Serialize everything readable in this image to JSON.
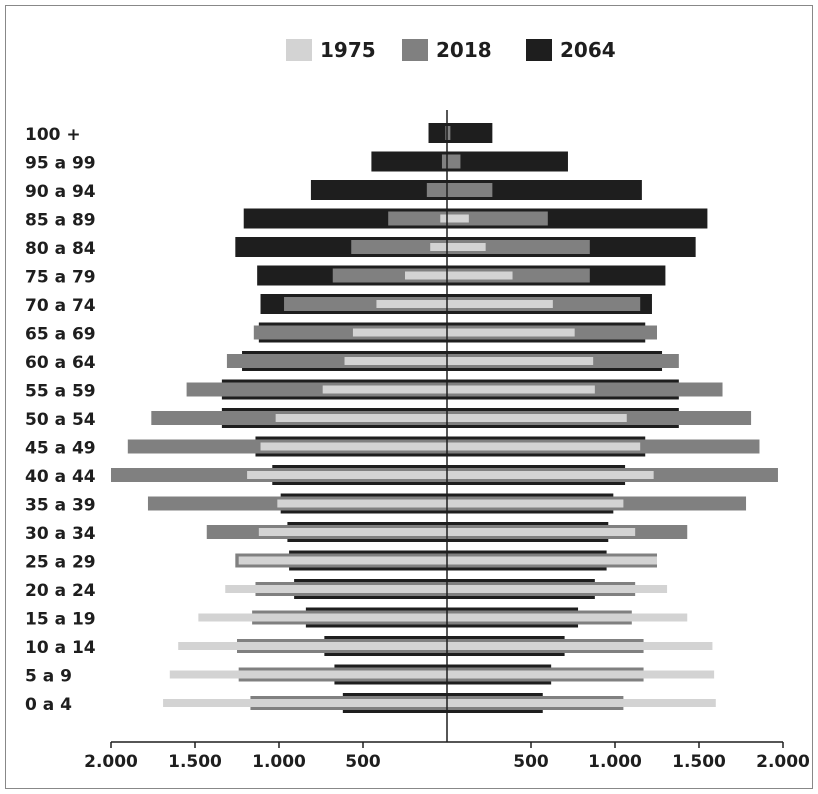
{
  "chart_data": {
    "type": "bar",
    "subtype": "population-pyramid",
    "title": "",
    "xlabel": "",
    "ylabel": "",
    "legend_position": "top-center",
    "xlim": [
      -2000,
      2000
    ],
    "x_ticks": [
      -2000,
      -1500,
      -1000,
      -500,
      500,
      1000,
      1500,
      2000
    ],
    "x_tick_labels": [
      "2.000",
      "1.500",
      "1.000",
      "500",
      "500",
      "1.000",
      "1.500",
      "2.000"
    ],
    "categories": [
      "100 +",
      "95 a 99",
      "90 a 94",
      "85 a 89",
      "80 a 84",
      "75 a 79",
      "70 a 74",
      "65 a 69",
      "60 a 64",
      "55 a 59",
      "50 a 54",
      "45 a 49",
      "40 a 44",
      "35 a 39",
      "30 a 34",
      "25 a 29",
      "20 a 24",
      "15 a 19",
      "10 a 14",
      "5 a 9",
      "0 a 4"
    ],
    "series": [
      {
        "name": "2064",
        "color": "#1e1e1e",
        "left": [
          110,
          450,
          810,
          1210,
          1260,
          1130,
          1110,
          1120,
          1220,
          1340,
          1340,
          1140,
          1040,
          990,
          950,
          940,
          910,
          840,
          730,
          670,
          620
        ],
        "right": [
          270,
          720,
          1160,
          1550,
          1480,
          1300,
          1220,
          1180,
          1280,
          1380,
          1380,
          1180,
          1060,
          990,
          960,
          950,
          880,
          780,
          700,
          620,
          570
        ]
      },
      {
        "name": "2018",
        "color": "#808080",
        "left": [
          10,
          30,
          120,
          350,
          570,
          680,
          970,
          1150,
          1310,
          1550,
          1760,
          1900,
          2000,
          1780,
          1430,
          1260,
          1140,
          1160,
          1250,
          1240,
          1170
        ],
        "right": [
          20,
          80,
          270,
          600,
          850,
          850,
          1150,
          1250,
          1380,
          1640,
          1810,
          1860,
          1970,
          1780,
          1430,
          1250,
          1120,
          1100,
          1170,
          1170,
          1050
        ]
      },
      {
        "name": "1975",
        "color": "#d3d3d3",
        "left": [
          0,
          0,
          0,
          40,
          100,
          250,
          420,
          560,
          610,
          740,
          1020,
          1110,
          1190,
          1010,
          1120,
          1240,
          1320,
          1480,
          1600,
          1650,
          1690
        ],
        "right": [
          0,
          0,
          0,
          130,
          230,
          390,
          630,
          760,
          870,
          880,
          1070,
          1150,
          1230,
          1050,
          1120,
          1250,
          1310,
          1430,
          1580,
          1590,
          1600
        ]
      }
    ]
  },
  "legend": [
    {
      "label": "1975",
      "color": "#d3d3d3"
    },
    {
      "label": "2018",
      "color": "#808080"
    },
    {
      "label": "2064",
      "color": "#1e1e1e"
    }
  ]
}
